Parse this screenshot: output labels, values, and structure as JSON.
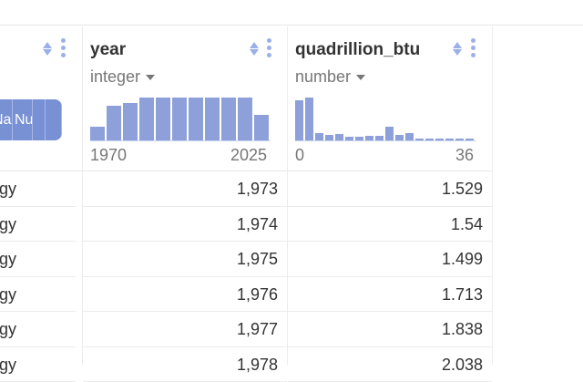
{
  "columns": [
    {
      "name": "",
      "cat_labels": [
        "Na",
        "Nu"
      ],
      "cells": [
        "rgy",
        "rgy",
        "rgy",
        "rgy",
        "rgy",
        "rgy"
      ]
    },
    {
      "name": "year",
      "type": "integer",
      "range": [
        "1970",
        "2025"
      ],
      "hist": [
        0.33,
        0.8,
        0.87,
        1,
        1,
        1,
        1,
        1,
        1,
        1,
        0.6
      ],
      "cells": [
        "1,973",
        "1,974",
        "1,975",
        "1,976",
        "1,977",
        "1,978"
      ]
    },
    {
      "name": "quadrillion_btu",
      "type": "number",
      "range": [
        "0",
        "36"
      ],
      "hist": [
        0.94,
        1,
        0.17,
        0.13,
        0.15,
        0.08,
        0.08,
        0.11,
        0.11,
        0.33,
        0.13,
        0.17,
        0.02,
        0.02,
        0.02,
        0.02,
        0.02,
        0.02
      ],
      "cells": [
        "1.529",
        "1.54",
        "1.499",
        "1.713",
        "1.838",
        "2.038"
      ]
    }
  ],
  "colors": {
    "accent": "#8da0d9",
    "icon": "#9bb0e8"
  }
}
